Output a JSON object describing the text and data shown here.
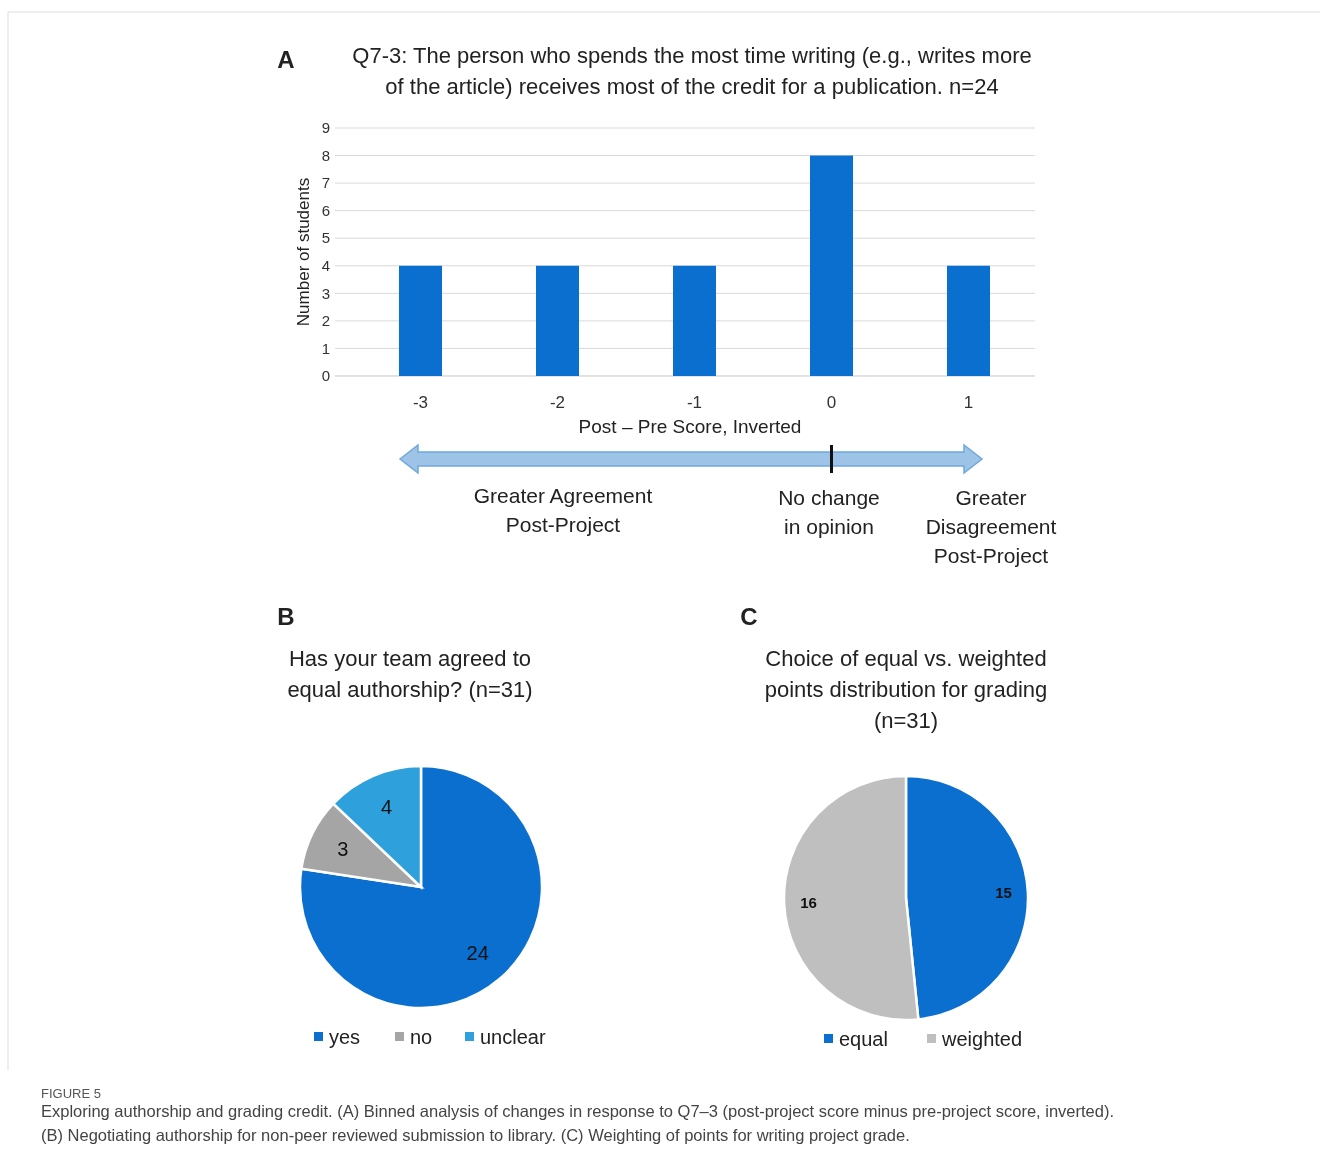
{
  "chart_data": [
    {
      "type": "bar",
      "title": "Q7-3: The person who spends the most time writing (e.g., writes more\nof the article) receives most of the credit for a publication. n=24",
      "xlabel": "Post – Pre Score, Inverted",
      "ylabel": "Number  of students",
      "categories": [
        "-3",
        "-2",
        "-1",
        "0",
        "1"
      ],
      "values": [
        4,
        4,
        4,
        8,
        4
      ],
      "color": "#0b6fcf",
      "ylim": [
        0,
        9
      ],
      "yticks": [
        0,
        1,
        2,
        3,
        4,
        5,
        6,
        7,
        8,
        9
      ],
      "grid": "y",
      "annotations": [
        "A",
        "Greater Agreement\nPost-Project",
        "No change\nin opinion",
        "Greater\nDisagreement\nPost-Project"
      ]
    },
    {
      "type": "pie",
      "title": "Has your team agreed to\nequal authorship? (n=31)",
      "categories": [
        "yes",
        "no",
        "unclear"
      ],
      "values": [
        24,
        3,
        4
      ],
      "colors": [
        "#0b6fcf",
        "#a5a5a5",
        "#2ea0dc"
      ],
      "data_labels": true,
      "legend": "bottom",
      "annotations": [
        "B"
      ]
    },
    {
      "type": "pie",
      "title": "Choice of equal vs. weighted\npoints distribution for grading\n(n=31)",
      "categories": [
        "equal",
        "weighted"
      ],
      "values": [
        15,
        16
      ],
      "colors": [
        "#0b6fcf",
        "#bfbfbf"
      ],
      "data_labels": true,
      "legend": "bottom",
      "annotations": [
        "C",
        "FIGURE 5",
        "Exploring authorship and grading credit. (A) Binned analysis of changes in response to Q7–3 (post-project score minus pre-project score, inverted).\n(B) Negotiating authorship for non-peer reviewed submission to library. (C) Weighting of points for writing project grade."
      ]
    }
  ]
}
